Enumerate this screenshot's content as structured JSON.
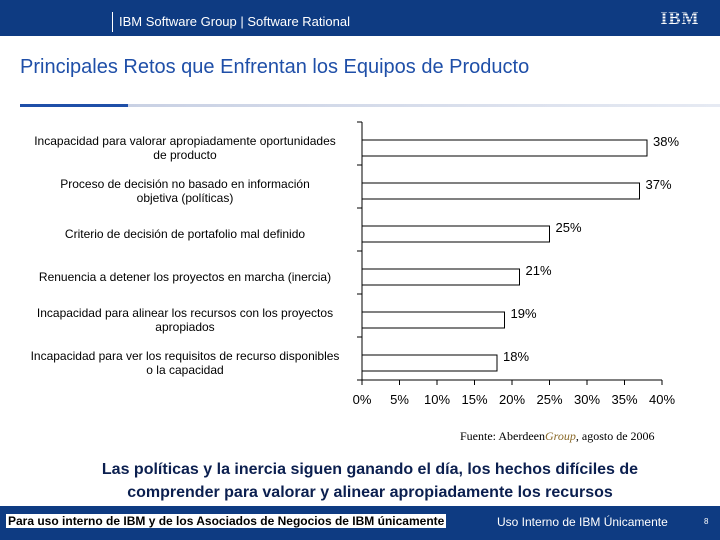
{
  "header": {
    "group": "IBM Software Group | Software Rational",
    "logo": "IBM"
  },
  "slide": {
    "title": "Principales Retos que Enfrentan los Equipos de Producto"
  },
  "chart_data": {
    "type": "bar",
    "orientation": "horizontal",
    "categories": [
      [
        "Incapacidad para valorar apropiadamente oportunidades",
        "de producto"
      ],
      [
        "Proceso de decisión no basado en información",
        "objetiva (políticas)"
      ],
      [
        "Criterio de decisión de portafolio mal definido"
      ],
      [
        "Renuencia a detener los proyectos en marcha (inercia)"
      ],
      [
        "Incapacidad para alinear los recursos con los proyectos",
        "apropiados"
      ],
      [
        "Incapacidad para ver los requisitos de recurso disponibles",
        "o la capacidad"
      ]
    ],
    "values": [
      38,
      37,
      25,
      21,
      19,
      18
    ],
    "value_labels": [
      "38%",
      "37%",
      "25%",
      "21%",
      "19%",
      "18%"
    ],
    "xlim": [
      0,
      40
    ],
    "ticks": [
      "0%",
      "5%",
      "10%",
      "15%",
      "20%",
      "25%",
      "30%",
      "35%",
      "40%"
    ],
    "grid": false,
    "bar_color": "#ffffff"
  },
  "source": {
    "prefix": "Fuente: Aberdeen",
    "italic": "Group",
    "suffix": ", agosto de 2006"
  },
  "takeaway": {
    "line1": "Las políticas y la inercia siguen ganando el día, los hechos difíciles de",
    "line2": "comprender para valorar y alinear apropiadamente los recursos"
  },
  "footer": {
    "left": "Para uso interno de IBM y de los Asociados de Negocios de IBM únicamente",
    "right": "Uso Interno de IBM Únicamente",
    "page": "8"
  }
}
